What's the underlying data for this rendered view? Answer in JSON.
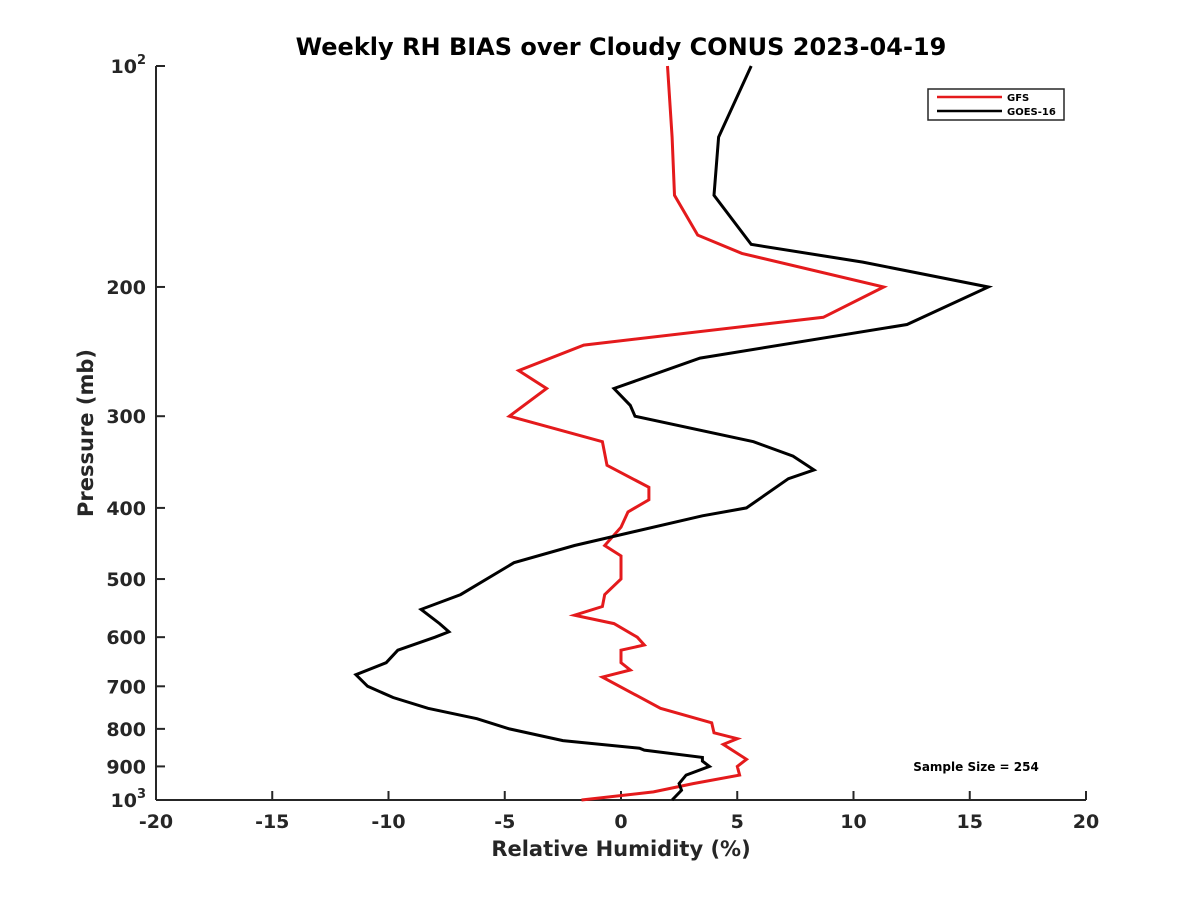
{
  "chart_data": {
    "type": "line",
    "title": "Weekly RH BIAS over Cloudy CONUS 2023-04-19",
    "xlabel": "Relative Humidity (%)",
    "ylabel": "Pressure (mb)",
    "xlim": [
      -20,
      20
    ],
    "ylim": [
      1000,
      100
    ],
    "y_scale": "log",
    "y_reversed": true,
    "grid": false,
    "x_ticks": [
      -20,
      -15,
      -10,
      -5,
      0,
      5,
      10,
      15,
      20
    ],
    "x_tick_labels": [
      "-20",
      "-15",
      "-10",
      "-5",
      "0",
      "5",
      "10",
      "15",
      "20"
    ],
    "y_ticks": [
      100,
      200,
      300,
      400,
      500,
      600,
      700,
      800,
      900,
      1000
    ],
    "y_tick_labels": [
      {
        "base": "10",
        "sup": "2"
      },
      {
        "base": "200",
        "sup": ""
      },
      {
        "base": "300",
        "sup": ""
      },
      {
        "base": "400",
        "sup": ""
      },
      {
        "base": "500",
        "sup": ""
      },
      {
        "base": "600",
        "sup": ""
      },
      {
        "base": "700",
        "sup": ""
      },
      {
        "base": "800",
        "sup": ""
      },
      {
        "base": "900",
        "sup": ""
      },
      {
        "base": "10",
        "sup": "3"
      }
    ],
    "legend_position": "top-right",
    "annotation": "Sample Size = 254",
    "series": [
      {
        "name": "GFS",
        "color": "#e41a1c",
        "points": [
          [
            2.0,
            100
          ],
          [
            2.2,
            125
          ],
          [
            2.3,
            150
          ],
          [
            3.3,
            170
          ],
          [
            5.2,
            180
          ],
          [
            11.3,
            200
          ],
          [
            8.7,
            220
          ],
          [
            -1.6,
            240
          ],
          [
            -4.4,
            260
          ],
          [
            -3.2,
            275
          ],
          [
            -4.8,
            300
          ],
          [
            -0.8,
            325
          ],
          [
            -0.6,
            350
          ],
          [
            1.2,
            375
          ],
          [
            1.2,
            390
          ],
          [
            0.3,
            405
          ],
          [
            0.0,
            425
          ],
          [
            -0.7,
            450
          ],
          [
            0.0,
            465
          ],
          [
            0.0,
            500
          ],
          [
            -0.7,
            525
          ],
          [
            -0.8,
            545
          ],
          [
            -2.0,
            560
          ],
          [
            -0.3,
            575
          ],
          [
            0.7,
            600
          ],
          [
            1.0,
            615
          ],
          [
            0.0,
            625
          ],
          [
            0.0,
            650
          ],
          [
            0.4,
            665
          ],
          [
            -0.8,
            680
          ],
          [
            1.7,
            750
          ],
          [
            3.9,
            785
          ],
          [
            4.0,
            810
          ],
          [
            5.0,
            825
          ],
          [
            4.4,
            840
          ],
          [
            5.4,
            880
          ],
          [
            5.0,
            900
          ],
          [
            5.1,
            925
          ],
          [
            3.1,
            950
          ],
          [
            1.4,
            975
          ],
          [
            -1.7,
            1000
          ]
        ]
      },
      {
        "name": "GOES-16",
        "color": "#000000",
        "points": [
          [
            5.6,
            100
          ],
          [
            4.2,
            125
          ],
          [
            4.0,
            150
          ],
          [
            5.6,
            175
          ],
          [
            10.4,
            185
          ],
          [
            15.8,
            200
          ],
          [
            12.3,
            225
          ],
          [
            3.4,
            250
          ],
          [
            -0.3,
            275
          ],
          [
            0.4,
            290
          ],
          [
            0.6,
            300
          ],
          [
            5.7,
            325
          ],
          [
            7.4,
            340
          ],
          [
            8.3,
            355
          ],
          [
            7.2,
            365
          ],
          [
            5.4,
            400
          ],
          [
            3.5,
            410
          ],
          [
            -2.0,
            450
          ],
          [
            -4.6,
            475
          ],
          [
            -6.9,
            525
          ],
          [
            -8.6,
            550
          ],
          [
            -7.8,
            575
          ],
          [
            -7.4,
            590
          ],
          [
            -8.0,
            600
          ],
          [
            -9.6,
            625
          ],
          [
            -10.1,
            650
          ],
          [
            -11.4,
            675
          ],
          [
            -10.9,
            700
          ],
          [
            -9.8,
            725
          ],
          [
            -8.3,
            750
          ],
          [
            -6.2,
            775
          ],
          [
            -4.8,
            800
          ],
          [
            -2.5,
            830
          ],
          [
            0.8,
            850
          ],
          [
            1.0,
            855
          ],
          [
            3.5,
            875
          ],
          [
            3.5,
            885
          ],
          [
            3.8,
            900
          ],
          [
            2.8,
            925
          ],
          [
            2.5,
            950
          ],
          [
            2.6,
            970
          ],
          [
            2.2,
            1000
          ]
        ]
      }
    ]
  }
}
